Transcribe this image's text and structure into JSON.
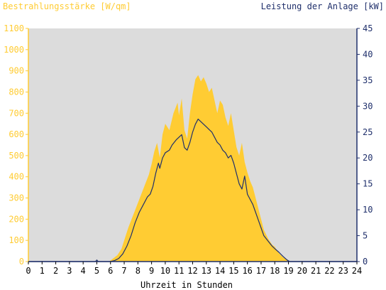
{
  "colors": {
    "irradiance": "#FFCC33",
    "power": "#1F2F6B",
    "plot_bg": "#DCDCDC",
    "left_axis": "#FFCC33",
    "right_axis": "#1F2F6B",
    "bottom_axis": "#000000"
  },
  "chart_data": {
    "type": "area",
    "left_title": "Bestrahlungsstärke [W/qm]",
    "right_title": "Leistung der Anlage [kW]",
    "xlabel": "Uhrzeit in Stunden",
    "xlim": [
      0,
      24
    ],
    "ylim_left": [
      0,
      1100
    ],
    "ylim_right": [
      0,
      45
    ],
    "x_ticks": [
      "0",
      "1",
      "2",
      "3",
      "4",
      "5",
      "6",
      "7",
      "8",
      "9",
      "10",
      "11",
      "12",
      "13",
      "14",
      "15",
      "16",
      "17",
      "18",
      "19",
      "20",
      "21",
      "22",
      "23",
      "24"
    ],
    "y_left_ticks": [
      "0",
      "100",
      "200",
      "300",
      "400",
      "500",
      "600",
      "700",
      "800",
      "900",
      "1000",
      "1100"
    ],
    "y_right_ticks": [
      "0",
      "5",
      "10",
      "15",
      "20",
      "25",
      "30",
      "35",
      "40",
      "45"
    ],
    "series": [
      {
        "name": "Bestrahlungsstärke [W/qm]",
        "axis": "left",
        "style": "area",
        "points": [
          [
            0,
            0
          ],
          [
            5.9,
            0
          ],
          [
            6.1,
            10
          ],
          [
            6.5,
            30
          ],
          [
            6.8,
            60
          ],
          [
            7.0,
            100
          ],
          [
            7.3,
            160
          ],
          [
            7.6,
            210
          ],
          [
            7.9,
            260
          ],
          [
            8.2,
            310
          ],
          [
            8.5,
            360
          ],
          [
            8.8,
            410
          ],
          [
            9.0,
            460
          ],
          [
            9.2,
            520
          ],
          [
            9.4,
            560
          ],
          [
            9.6,
            490
          ],
          [
            9.8,
            600
          ],
          [
            10.0,
            650
          ],
          [
            10.3,
            620
          ],
          [
            10.6,
            700
          ],
          [
            10.9,
            750
          ],
          [
            11.0,
            690
          ],
          [
            11.2,
            770
          ],
          [
            11.4,
            620
          ],
          [
            11.6,
            580
          ],
          [
            11.8,
            700
          ],
          [
            12.0,
            790
          ],
          [
            12.2,
            860
          ],
          [
            12.4,
            880
          ],
          [
            12.6,
            850
          ],
          [
            12.8,
            870
          ],
          [
            13.0,
            840
          ],
          [
            13.2,
            800
          ],
          [
            13.4,
            820
          ],
          [
            13.6,
            760
          ],
          [
            13.8,
            700
          ],
          [
            14.0,
            760
          ],
          [
            14.2,
            740
          ],
          [
            14.4,
            680
          ],
          [
            14.6,
            640
          ],
          [
            14.8,
            700
          ],
          [
            15.0,
            620
          ],
          [
            15.2,
            540
          ],
          [
            15.4,
            500
          ],
          [
            15.6,
            560
          ],
          [
            15.8,
            470
          ],
          [
            16.0,
            420
          ],
          [
            16.2,
            380
          ],
          [
            16.4,
            350
          ],
          [
            16.6,
            300
          ],
          [
            16.8,
            250
          ],
          [
            17.0,
            200
          ],
          [
            17.2,
            150
          ],
          [
            17.5,
            110
          ],
          [
            17.8,
            80
          ],
          [
            18.0,
            70
          ],
          [
            18.3,
            40
          ],
          [
            18.6,
            20
          ],
          [
            18.9,
            10
          ],
          [
            19.1,
            0
          ],
          [
            24,
            0
          ]
        ]
      },
      {
        "name": "Leistung der Anlage [kW]",
        "axis": "right",
        "style": "line",
        "points": [
          [
            0,
            0
          ],
          [
            4.9,
            0
          ],
          [
            5.0,
            0.3
          ],
          [
            5.1,
            0
          ],
          [
            6.0,
            0
          ],
          [
            6.3,
            0.2
          ],
          [
            6.6,
            0.6
          ],
          [
            6.9,
            1.5
          ],
          [
            7.2,
            3
          ],
          [
            7.5,
            5
          ],
          [
            7.8,
            7.5
          ],
          [
            8.1,
            9.5
          ],
          [
            8.4,
            11
          ],
          [
            8.7,
            12.5
          ],
          [
            8.9,
            13
          ],
          [
            9.1,
            14.5
          ],
          [
            9.3,
            17
          ],
          [
            9.5,
            19
          ],
          [
            9.6,
            18
          ],
          [
            9.8,
            20
          ],
          [
            10.0,
            21
          ],
          [
            10.3,
            21.5
          ],
          [
            10.5,
            22.5
          ],
          [
            10.8,
            23.5
          ],
          [
            11.0,
            24
          ],
          [
            11.2,
            24.5
          ],
          [
            11.4,
            22
          ],
          [
            11.6,
            21.5
          ],
          [
            11.8,
            23
          ],
          [
            12.0,
            25
          ],
          [
            12.2,
            26.5
          ],
          [
            12.4,
            27.5
          ],
          [
            12.6,
            27
          ],
          [
            12.8,
            26.5
          ],
          [
            13.0,
            26
          ],
          [
            13.2,
            25.5
          ],
          [
            13.4,
            25
          ],
          [
            13.6,
            24
          ],
          [
            13.8,
            23
          ],
          [
            14.0,
            22.5
          ],
          [
            14.2,
            21.5
          ],
          [
            14.4,
            21
          ],
          [
            14.6,
            20
          ],
          [
            14.8,
            20.5
          ],
          [
            15.0,
            19
          ],
          [
            15.2,
            17
          ],
          [
            15.4,
            15
          ],
          [
            15.6,
            14
          ],
          [
            15.8,
            16.5
          ],
          [
            16.0,
            13
          ],
          [
            16.2,
            12
          ],
          [
            16.4,
            11
          ],
          [
            16.6,
            9.5
          ],
          [
            16.8,
            8
          ],
          [
            17.0,
            6.5
          ],
          [
            17.2,
            5
          ],
          [
            17.5,
            4
          ],
          [
            17.8,
            3
          ],
          [
            18.0,
            2.5
          ],
          [
            18.3,
            1.8
          ],
          [
            18.6,
            1
          ],
          [
            18.9,
            0.3
          ],
          [
            19.1,
            0
          ],
          [
            24,
            0
          ]
        ]
      }
    ]
  }
}
